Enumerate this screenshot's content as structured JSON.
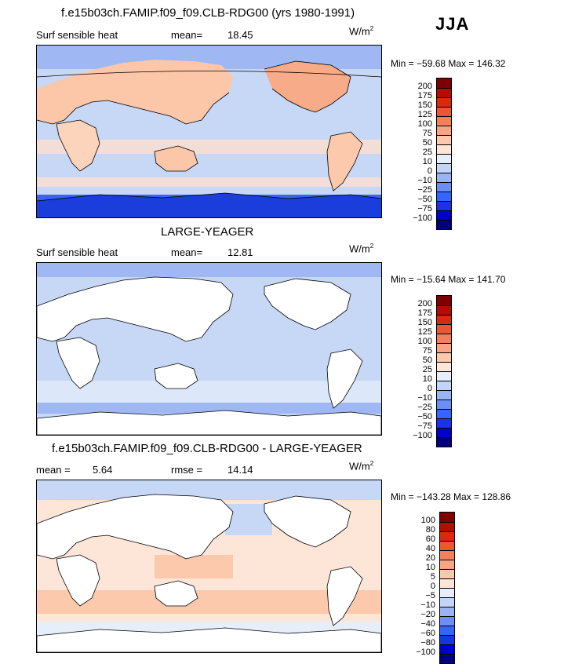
{
  "season": "JJA",
  "units_base": "W/m",
  "units_exp": "2",
  "colors": {
    "abs_scale": [
      "#00007f",
      "#0000cc",
      "#1a33e6",
      "#3366ff",
      "#6b8ff5",
      "#99b3f5",
      "#c2d4f7",
      "#e6eefa",
      "#fde6d8",
      "#fcc9ad",
      "#f9a585",
      "#f47f5d",
      "#ec5633",
      "#d92a10",
      "#b30d00",
      "#7f0000"
    ],
    "diff_scale": [
      "#00007f",
      "#0000cc",
      "#1a33e6",
      "#3366ff",
      "#6b8ff5",
      "#99b3f5",
      "#c2d4f7",
      "#e6eefa",
      "#fde6d8",
      "#fcc9ad",
      "#f9a585",
      "#f47f5d",
      "#ec5633",
      "#d92a10",
      "#b30d00",
      "#7f0000"
    ],
    "land": "#ffffff",
    "coast": "#000000"
  },
  "panels": [
    {
      "title": "f.e15b03ch.FAMIP.f09_f09.CLB-RDG00 (yrs 1980-1991)",
      "left_label": "Surf sensible heat",
      "mean_label": "mean=",
      "mean_value": "18.45",
      "rmse_label": "",
      "rmse_value": "",
      "stats": "Min = −59.68  Max = 146.32",
      "legend_ticks": [
        "200",
        "175",
        "150",
        "125",
        "100",
        "75",
        "50",
        "25",
        "10",
        "0",
        "−10",
        "−25",
        "−50",
        "−75",
        "−100"
      ]
    },
    {
      "title": "LARGE-YEAGER",
      "left_label": "Surf sensible heat",
      "mean_label": "mean=",
      "mean_value": "12.81",
      "rmse_label": "",
      "rmse_value": "",
      "stats": "Min = −15.64  Max = 141.70",
      "legend_ticks": [
        "200",
        "175",
        "150",
        "125",
        "100",
        "75",
        "50",
        "25",
        "10",
        "0",
        "−10",
        "−25",
        "−50",
        "−75",
        "−100"
      ]
    },
    {
      "title": "f.e15b03ch.FAMIP.f09_f09.CLB-RDG00 - LARGE-YEAGER",
      "left_label": "mean =",
      "mean_label": "",
      "mean_value": "5.64",
      "rmse_label": "rmse =",
      "rmse_value": "14.14",
      "stats": "Min = −143.28  Max = 128.86",
      "legend_ticks": [
        "100",
        "80",
        "60",
        "40",
        "20",
        "10",
        "5",
        "0",
        "−5",
        "−10",
        "−20",
        "−40",
        "−60",
        "−80",
        "−100"
      ]
    }
  ],
  "chart_data": [
    {
      "type": "heatmap",
      "title": "f.e15b03ch.FAMIP.f09_f09.CLB-RDG00 (yrs 1980-1991)",
      "variable": "Surf sensible heat",
      "mean": 18.45,
      "min": -59.68,
      "max": 146.32,
      "contour_levels": [
        -100,
        -75,
        -50,
        -25,
        -10,
        0,
        10,
        25,
        50,
        75,
        100,
        125,
        150,
        175,
        200
      ]
    },
    {
      "type": "heatmap",
      "title": "LARGE-YEAGER",
      "variable": "Surf sensible heat",
      "mean": 12.81,
      "min": -15.64,
      "max": 141.7,
      "contour_levels": [
        -100,
        -75,
        -50,
        -25,
        -10,
        0,
        10,
        25,
        50,
        75,
        100,
        125,
        150,
        175,
        200
      ]
    },
    {
      "type": "heatmap",
      "title": "f.e15b03ch.FAMIP.f09_f09.CLB-RDG00 - LARGE-YEAGER",
      "mean": 5.64,
      "rmse": 14.14,
      "min": -143.28,
      "max": 128.86,
      "contour_levels": [
        -100,
        -80,
        -60,
        -40,
        -20,
        -10,
        -5,
        0,
        5,
        10,
        20,
        40,
        60,
        80,
        100
      ]
    }
  ]
}
